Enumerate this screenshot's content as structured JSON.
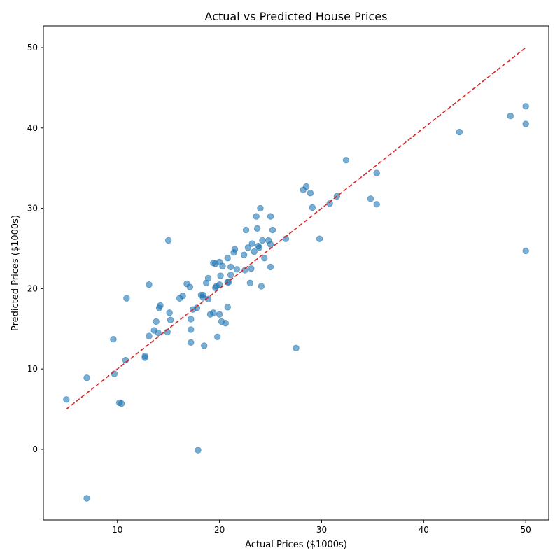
{
  "chart_data": {
    "type": "scatter",
    "title": "Actual vs Predicted House Prices",
    "xlabel": "Actual Prices ($1000s)",
    "ylabel": "Predicted Prices ($1000s)",
    "xlim": [
      2.75,
      52.25
    ],
    "ylim": [
      -8.8,
      52.7
    ],
    "xticks": [
      10,
      20,
      30,
      40,
      50
    ],
    "yticks": [
      0,
      10,
      20,
      30,
      40,
      50
    ],
    "grid": false,
    "point_color": "#1f77b4",
    "reference_line": {
      "x": [
        5,
        50
      ],
      "y": [
        5,
        50
      ],
      "color": "#d62728",
      "style": "dashed"
    },
    "points": [
      [
        5.0,
        6.2
      ],
      [
        7.0,
        8.9
      ],
      [
        7.0,
        -6.1
      ],
      [
        9.6,
        13.7
      ],
      [
        9.7,
        9.4
      ],
      [
        10.2,
        5.8
      ],
      [
        10.4,
        5.7
      ],
      [
        10.8,
        11.1
      ],
      [
        10.9,
        18.8
      ],
      [
        12.7,
        11.6
      ],
      [
        12.7,
        11.4
      ],
      [
        13.1,
        20.5
      ],
      [
        13.1,
        14.1
      ],
      [
        13.6,
        14.8
      ],
      [
        13.8,
        15.9
      ],
      [
        14.0,
        14.5
      ],
      [
        14.1,
        17.6
      ],
      [
        14.2,
        17.9
      ],
      [
        14.9,
        14.6
      ],
      [
        15.0,
        26.0
      ],
      [
        15.1,
        17.0
      ],
      [
        15.2,
        16.1
      ],
      [
        16.1,
        18.8
      ],
      [
        16.4,
        19.1
      ],
      [
        16.8,
        20.6
      ],
      [
        17.1,
        20.2
      ],
      [
        17.2,
        16.2
      ],
      [
        17.2,
        14.9
      ],
      [
        17.2,
        13.3
      ],
      [
        17.4,
        17.4
      ],
      [
        17.8,
        17.6
      ],
      [
        17.9,
        -0.1
      ],
      [
        18.2,
        19.2
      ],
      [
        18.4,
        18.9
      ],
      [
        18.4,
        19.2
      ],
      [
        18.5,
        12.9
      ],
      [
        18.7,
        20.7
      ],
      [
        18.9,
        18.7
      ],
      [
        18.9,
        21.3
      ],
      [
        19.1,
        16.8
      ],
      [
        19.4,
        23.2
      ],
      [
        19.4,
        17.0
      ],
      [
        19.6,
        20.1
      ],
      [
        19.6,
        23.1
      ],
      [
        19.7,
        20.3
      ],
      [
        19.8,
        14.0
      ],
      [
        20.0,
        23.3
      ],
      [
        20.0,
        20.5
      ],
      [
        20.0,
        16.8
      ],
      [
        20.1,
        21.6
      ],
      [
        20.2,
        15.9
      ],
      [
        20.3,
        22.8
      ],
      [
        20.6,
        15.7
      ],
      [
        20.8,
        17.7
      ],
      [
        20.8,
        23.8
      ],
      [
        20.8,
        20.8
      ],
      [
        20.9,
        20.8
      ],
      [
        21.1,
        22.7
      ],
      [
        21.1,
        21.7
      ],
      [
        21.4,
        24.5
      ],
      [
        21.5,
        24.9
      ],
      [
        21.7,
        22.4
      ],
      [
        22.4,
        24.2
      ],
      [
        22.5,
        22.3
      ],
      [
        22.6,
        27.3
      ],
      [
        22.8,
        25.1
      ],
      [
        23.0,
        20.7
      ],
      [
        23.1,
        22.5
      ],
      [
        23.2,
        25.6
      ],
      [
        23.4,
        24.6
      ],
      [
        23.6,
        29.0
      ],
      [
        23.7,
        27.5
      ],
      [
        23.8,
        25.3
      ],
      [
        23.9,
        25.1
      ],
      [
        24.0,
        30.0
      ],
      [
        24.1,
        20.3
      ],
      [
        24.2,
        26.0
      ],
      [
        24.4,
        23.8
      ],
      [
        24.8,
        26.0
      ],
      [
        25.0,
        29.0
      ],
      [
        25.0,
        25.5
      ],
      [
        25.0,
        22.7
      ],
      [
        25.2,
        27.3
      ],
      [
        26.5,
        26.2
      ],
      [
        27.5,
        12.6
      ],
      [
        28.2,
        32.3
      ],
      [
        28.5,
        32.7
      ],
      [
        28.9,
        31.9
      ],
      [
        29.1,
        30.1
      ],
      [
        29.8,
        26.2
      ],
      [
        30.8,
        30.6
      ],
      [
        31.5,
        31.5
      ],
      [
        32.4,
        36.0
      ],
      [
        34.8,
        31.2
      ],
      [
        35.4,
        34.4
      ],
      [
        35.4,
        30.5
      ],
      [
        43.5,
        39.5
      ],
      [
        48.5,
        41.5
      ],
      [
        50.0,
        42.7
      ],
      [
        50.0,
        40.5
      ],
      [
        50.0,
        24.7
      ]
    ]
  }
}
